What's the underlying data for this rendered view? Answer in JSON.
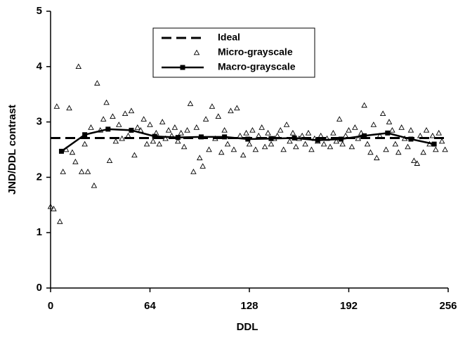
{
  "chart_data": {
    "type": "line",
    "x_label": "DDL",
    "y_label": "JND/DDL contrast",
    "xlim": [
      0,
      256
    ],
    "ylim": [
      0,
      5
    ],
    "xticks": [
      0,
      64,
      128,
      192,
      256
    ],
    "yticks": [
      0,
      1,
      2,
      3,
      4,
      5
    ],
    "legend": "top",
    "series": [
      {
        "name": "Ideal",
        "color": "#000000",
        "style": "dashed",
        "x": [
          0,
          256
        ],
        "values": [
          2.71,
          2.71
        ]
      },
      {
        "name": "Micro-grayscale",
        "color": "#000000",
        "style": "triangle",
        "x": [
          0,
          2,
          4,
          6,
          8,
          10,
          12,
          14,
          16,
          18,
          20,
          22,
          24,
          26,
          28,
          30,
          32,
          34,
          36,
          38,
          40,
          42,
          44,
          46,
          48,
          50,
          52,
          54,
          56,
          58,
          60,
          62,
          64,
          66,
          68,
          70,
          72,
          74,
          76,
          78,
          80,
          82,
          84,
          86,
          88,
          90,
          92,
          94,
          96,
          98,
          100,
          102,
          104,
          106,
          108,
          110,
          112,
          114,
          116,
          118,
          120,
          122,
          124,
          126,
          128,
          130,
          132,
          134,
          136,
          138,
          140,
          142,
          144,
          146,
          148,
          150,
          152,
          154,
          156,
          158,
          160,
          162,
          164,
          166,
          168,
          170,
          172,
          174,
          176,
          178,
          180,
          182,
          184,
          186,
          188,
          190,
          192,
          194,
          196,
          198,
          200,
          202,
          204,
          206,
          208,
          210,
          212,
          214,
          216,
          218,
          220,
          222,
          224,
          226,
          228,
          230,
          232,
          234,
          236,
          238,
          240,
          242,
          244,
          246,
          248,
          250,
          252,
          254
        ],
        "values": [
          1.47,
          1.43,
          3.28,
          1.2,
          2.1,
          2.5,
          3.25,
          2.45,
          2.28,
          4.0,
          2.1,
          2.6,
          2.1,
          2.9,
          1.85,
          3.7,
          2.85,
          3.05,
          3.35,
          2.3,
          3.1,
          2.65,
          2.95,
          2.7,
          3.15,
          2.75,
          3.2,
          2.4,
          2.9,
          2.85,
          3.05,
          2.6,
          2.95,
          2.65,
          2.8,
          2.6,
          3.0,
          2.7,
          2.85,
          2.75,
          2.9,
          2.65,
          2.8,
          2.55,
          2.85,
          3.33,
          2.1,
          2.9,
          2.35,
          2.2,
          3.05,
          2.5,
          3.28,
          2.7,
          3.1,
          2.45,
          2.85,
          2.6,
          3.2,
          2.5,
          3.25,
          2.75,
          2.4,
          2.8,
          2.6,
          2.85,
          2.5,
          2.75,
          2.9,
          2.55,
          2.8,
          2.6,
          2.7,
          2.75,
          2.85,
          2.5,
          2.95,
          2.65,
          2.8,
          2.55,
          2.7,
          2.75,
          2.6,
          2.8,
          2.5,
          2.7,
          2.65,
          2.75,
          2.6,
          2.7,
          2.55,
          2.8,
          2.65,
          3.05,
          2.6,
          2.75,
          2.85,
          2.55,
          2.9,
          2.7,
          2.8,
          3.3,
          2.6,
          2.45,
          2.95,
          2.35,
          2.75,
          3.15,
          2.5,
          3.0,
          2.85,
          2.6,
          2.45,
          2.9,
          2.7,
          2.55,
          2.85,
          2.3,
          2.25,
          2.75,
          2.45,
          2.85,
          2.6,
          2.75,
          2.5,
          2.8,
          2.65,
          2.5
        ]
      },
      {
        "name": "Macro-grayscale",
        "color": "#000000",
        "style": "line-square",
        "x": [
          7,
          22,
          37,
          52,
          67,
          82,
          97,
          112,
          127,
          142,
          157,
          172,
          187,
          202,
          217,
          232,
          247
        ],
        "values": [
          2.47,
          2.77,
          2.87,
          2.85,
          2.74,
          2.72,
          2.73,
          2.73,
          2.69,
          2.7,
          2.71,
          2.67,
          2.69,
          2.75,
          2.8,
          2.69,
          2.6
        ]
      }
    ]
  }
}
